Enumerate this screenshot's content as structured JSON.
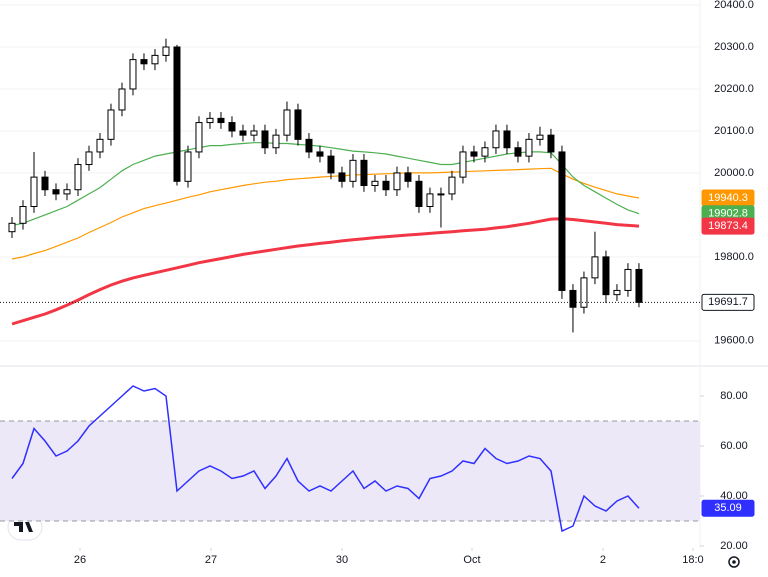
{
  "chart_data": [
    {
      "type": "candlestick",
      "up_color": "#ffffff",
      "down_color": "#000000",
      "border_color": "#000000",
      "xlim": [
        -1.09,
        62.55
      ],
      "xticks": [
        {
          "value": 6.18,
          "label": "26"
        },
        {
          "value": 18.09,
          "label": "27"
        },
        {
          "value": 30.0,
          "label": "30"
        },
        {
          "value": 41.82,
          "label": "Oct"
        },
        {
          "value": 53.73,
          "label": "2"
        },
        {
          "value": 61.91,
          "label": "18:0"
        }
      ],
      "ylim": [
        19540,
        20412
      ],
      "yticks": [
        {
          "value": 20400,
          "label": "20400.0"
        },
        {
          "value": 20300,
          "label": "20300.0"
        },
        {
          "value": 20200,
          "label": "20200.0"
        },
        {
          "value": 20100,
          "label": "20100.0"
        },
        {
          "value": 20000,
          "label": "20000.0"
        },
        {
          "value": 19800,
          "label": "19800.0"
        },
        {
          "value": 19600,
          "label": "19600.0"
        }
      ],
      "grid": true,
      "open": [
        19860,
        19880,
        19920,
        19990,
        19960,
        19950,
        19960,
        20020,
        20050,
        20080,
        20150,
        20200,
        20270,
        20260,
        20280,
        20300,
        19980,
        20050,
        20120,
        20130,
        20120,
        20100,
        20090,
        20100,
        20060,
        20090,
        20150,
        20080,
        20050,
        20040,
        20000,
        19980,
        20030,
        19970,
        19980,
        19960,
        20000,
        19980,
        19920,
        19950,
        19950,
        19990,
        20050,
        20040,
        20060,
        20100,
        20060,
        20040,
        20080,
        20090,
        20050,
        19720,
        19680,
        19750,
        19800,
        19710,
        19720,
        19770
      ],
      "high": [
        19895,
        19935,
        20050,
        20005,
        19975,
        19975,
        20035,
        20065,
        20095,
        20165,
        20215,
        20285,
        20285,
        20295,
        20320,
        20305,
        20065,
        20135,
        20145,
        20145,
        20135,
        20115,
        20115,
        20115,
        20105,
        20170,
        20165,
        20095,
        20065,
        20055,
        20015,
        20045,
        20045,
        19995,
        19995,
        20015,
        20015,
        19995,
        19965,
        19965,
        20005,
        20065,
        20065,
        20075,
        20115,
        20115,
        20075,
        20095,
        20110,
        20105,
        20065,
        19735,
        19765,
        19860,
        19815,
        19735,
        19785,
        19785
      ],
      "low": [
        19845,
        19865,
        19905,
        19945,
        19935,
        19935,
        19945,
        20005,
        20035,
        20065,
        20135,
        20185,
        20245,
        20245,
        20265,
        19970,
        19965,
        20035,
        20105,
        20105,
        20085,
        20075,
        20075,
        20045,
        20045,
        20075,
        20065,
        20035,
        20025,
        19985,
        19965,
        19965,
        19955,
        19955,
        19945,
        19945,
        19965,
        19905,
        19905,
        19870,
        19935,
        19975,
        20025,
        20025,
        20045,
        20045,
        20025,
        20025,
        20065,
        20035,
        19700,
        19620,
        19665,
        19735,
        19690,
        19695,
        19705,
        19680
      ],
      "close": [
        19880,
        19920,
        19990,
        19960,
        19950,
        19960,
        20020,
        20050,
        20080,
        20150,
        20200,
        20270,
        20260,
        20280,
        20300,
        19980,
        20050,
        20120,
        20130,
        20120,
        20100,
        20090,
        20100,
        20060,
        20090,
        20150,
        20080,
        20050,
        20040,
        20000,
        19980,
        20030,
        19970,
        19980,
        19960,
        20000,
        19980,
        19920,
        19950,
        19950,
        19990,
        20050,
        20040,
        20060,
        20100,
        20060,
        20040,
        20080,
        20090,
        20050,
        19720,
        19680,
        19750,
        19800,
        19710,
        19720,
        19770,
        19691.7
      ],
      "lines": [
        {
          "color": "#ff9800",
          "width": 1.2,
          "values": [
            19795,
            19800,
            19808,
            19815,
            19825,
            19835,
            19845,
            19858,
            19870,
            19882,
            19895,
            19905,
            19915,
            19922,
            19928,
            19935,
            19942,
            19948,
            19955,
            19960,
            19965,
            19970,
            19974,
            19978,
            19980,
            19984,
            19986,
            19988,
            19990,
            19992,
            19993,
            19995,
            19996,
            19997,
            19998,
            19999,
            20000,
            20000,
            20000,
            20001,
            20002,
            20003,
            20004,
            20005,
            20006,
            20007,
            20008,
            20009,
            20010,
            20011,
            19998,
            19985,
            19975,
            19966,
            19958,
            19950,
            19945,
            19940.3
          ]
        },
        {
          "color": "#4caf50",
          "width": 1.2,
          "values": [
            19875,
            19880,
            19890,
            19900,
            19910,
            19920,
            19935,
            19950,
            19965,
            19985,
            20005,
            20020,
            20030,
            20040,
            20045,
            20050,
            20055,
            20060,
            20065,
            20065,
            20068,
            20070,
            20072,
            20072,
            20070,
            20070,
            20068,
            20066,
            20064,
            20060,
            20056,
            20052,
            20050,
            20048,
            20045,
            20040,
            20035,
            20030,
            20025,
            20020,
            20020,
            20025,
            20030,
            20035,
            20040,
            20045,
            20048,
            20050,
            20050,
            20048,
            20020,
            19990,
            19970,
            19955,
            19940,
            19925,
            19912,
            19902.8
          ]
        },
        {
          "color": "#f23645",
          "width": 3,
          "values": [
            19640,
            19648,
            19656,
            19664,
            19674,
            19685,
            19697,
            19710,
            19722,
            19733,
            19742,
            19750,
            19756,
            19762,
            19768,
            19774,
            19780,
            19786,
            19791,
            19796,
            19801,
            19806,
            19810,
            19814,
            19818,
            19822,
            19826,
            19829,
            19832,
            19835,
            19838,
            19841,
            19843,
            19846,
            19848,
            19850,
            19852,
            19854,
            19856,
            19858,
            19860,
            19862,
            19864,
            19866,
            19869,
            19872,
            19876,
            19880,
            19885,
            19890,
            19891,
            19889,
            19886,
            19883,
            19880,
            19877,
            19875,
            19873.4
          ]
        }
      ]
    },
    {
      "type": "line",
      "color": "#2f2fff",
      "band": [
        30,
        70
      ],
      "band_color": "#ece8f7",
      "ylim": [
        19.2,
        92
      ],
      "yticks": [
        {
          "value": 80,
          "label": "80.00"
        },
        {
          "value": 60,
          "label": "60.00"
        },
        {
          "value": 40,
          "label": "40.00"
        },
        {
          "value": 20,
          "label": "20.00"
        }
      ],
      "values": [
        47,
        53,
        67,
        62,
        56,
        58,
        62,
        68,
        72,
        76,
        80,
        84,
        82,
        83,
        80,
        42,
        46,
        50,
        52,
        50,
        47,
        48,
        50,
        43,
        48,
        55,
        46,
        42,
        44,
        42,
        46,
        50,
        43,
        46,
        42,
        44,
        43,
        39,
        47,
        48,
        50,
        54,
        53,
        59,
        55,
        53,
        54,
        56,
        55,
        50,
        26,
        28,
        40,
        36,
        34,
        38,
        40,
        35.09
      ]
    }
  ]
}
